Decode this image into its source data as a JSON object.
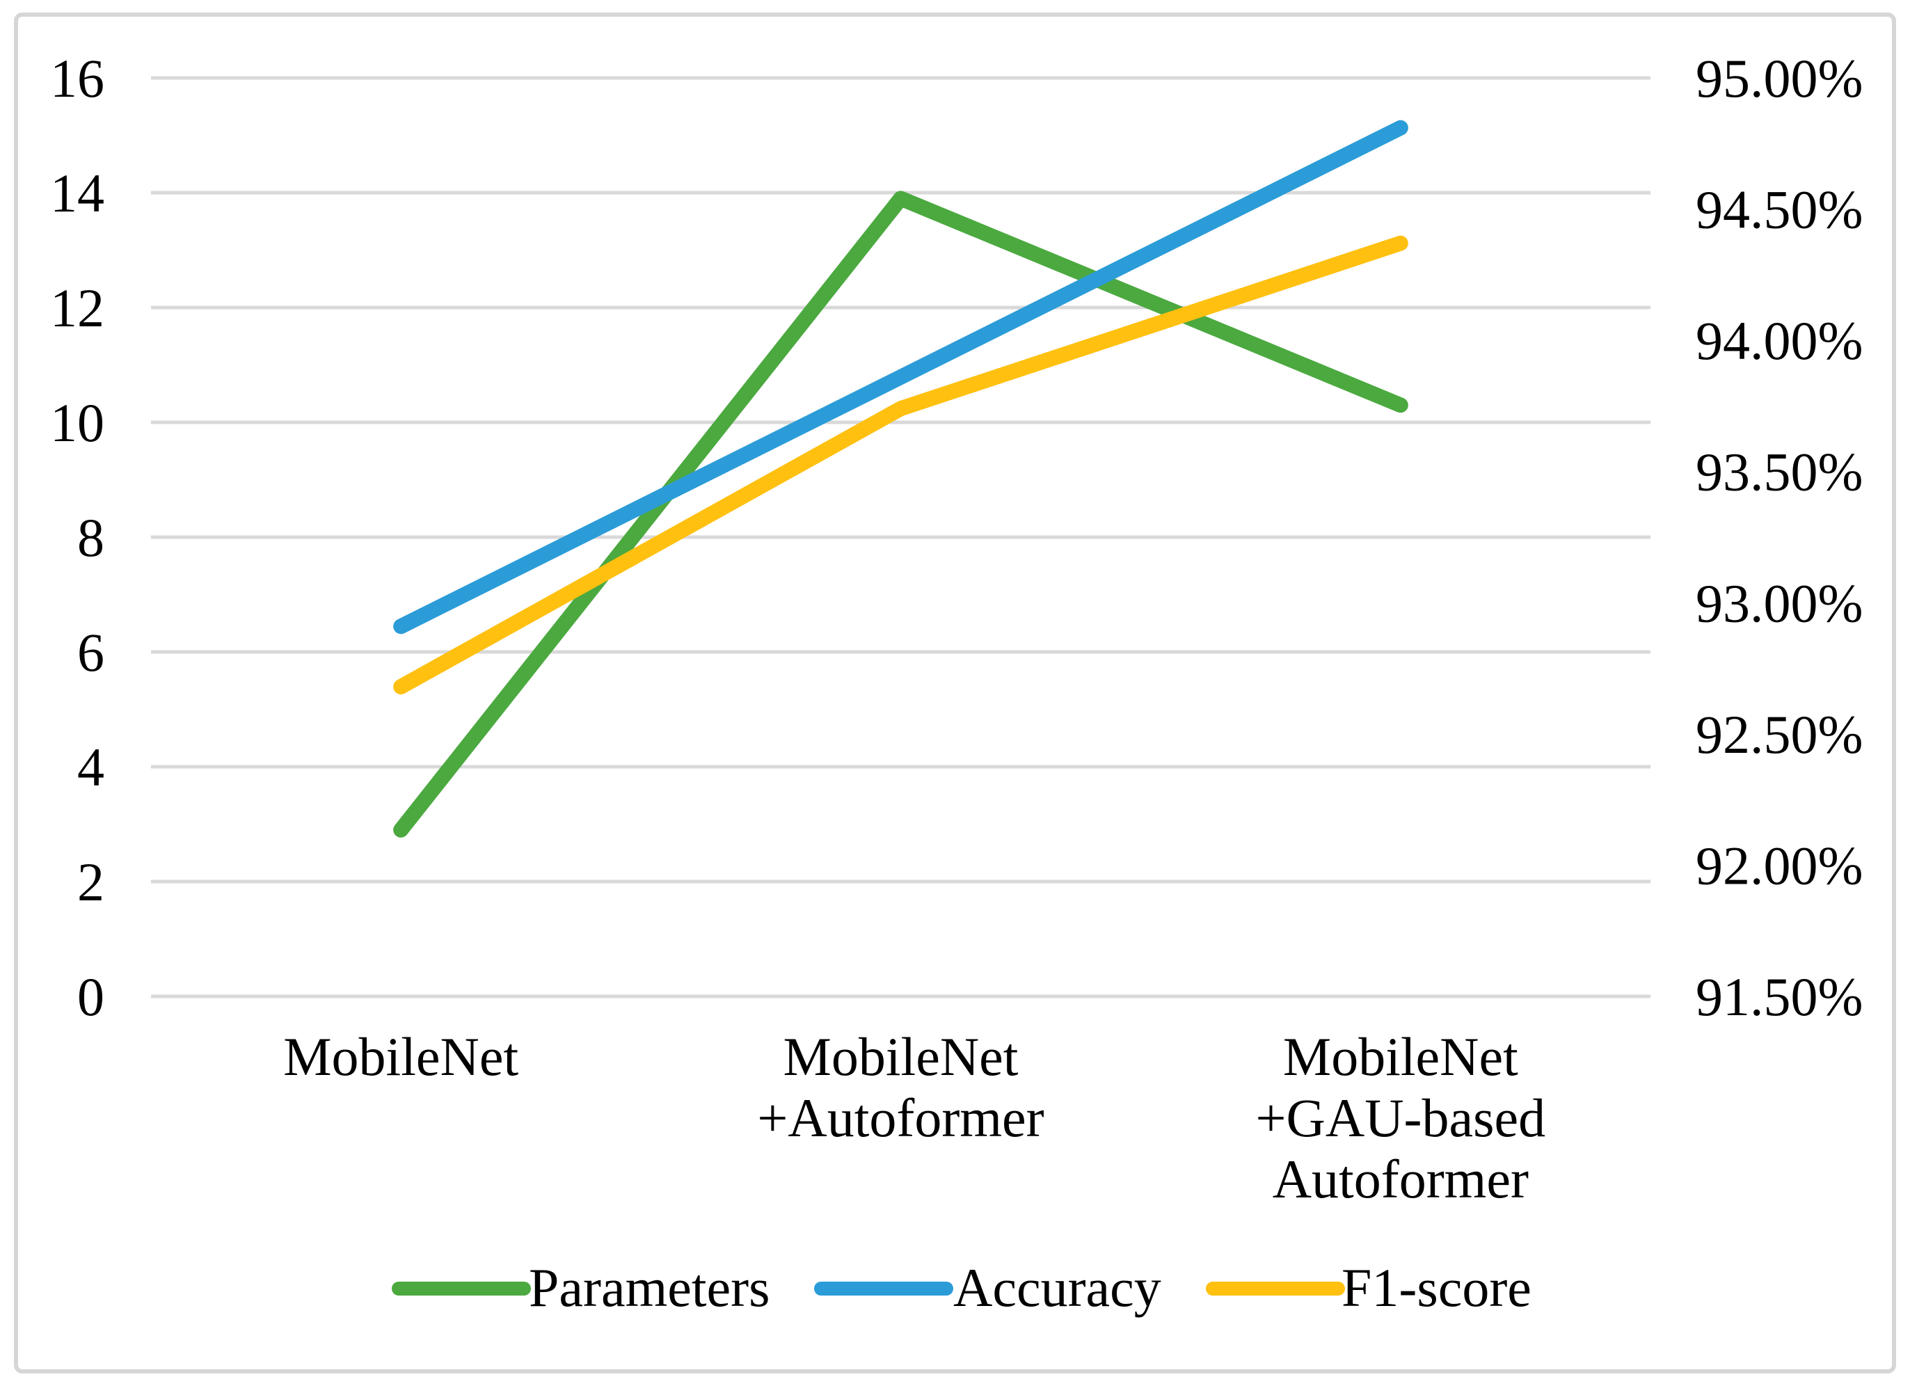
{
  "chart_data": {
    "type": "line",
    "title": "",
    "categories": [
      [
        "MobileNet"
      ],
      [
        "MobileNet",
        "+Autoformer"
      ],
      [
        "MobileNet",
        "+GAU-based",
        "Autoformer"
      ]
    ],
    "series": [
      {
        "name": "Parameters",
        "axis": "left",
        "color": "#4BA93F",
        "values": [
          2.9,
          13.9,
          10.3
        ]
      },
      {
        "name": "Accuracy",
        "axis": "right",
        "color": "#2B9CD8",
        "values": [
          92.91,
          93.86,
          94.81
        ]
      },
      {
        "name": "F1-score",
        "axis": "right",
        "color": "#FFC010",
        "values": [
          92.68,
          93.74,
          94.37
        ]
      }
    ],
    "left_axis": {
      "min": 0,
      "max": 16,
      "step": 2,
      "ticks": [
        "16",
        "14",
        "12",
        "10",
        "8",
        "6",
        "4",
        "2",
        "0"
      ]
    },
    "right_axis": {
      "min": 91.5,
      "max": 95,
      "step": 0.5,
      "ticks": [
        "95.00%",
        "94.50%",
        "94.00%",
        "93.50%",
        "93.00%",
        "92.50%",
        "92.00%",
        "91.50%"
      ]
    },
    "grid": true,
    "legend_position": "bottom",
    "colors": {
      "gridline": "#D9D9D9",
      "frame_border": "#D6D6D6",
      "background": "#FFFFFF",
      "text": "#000000"
    }
  }
}
